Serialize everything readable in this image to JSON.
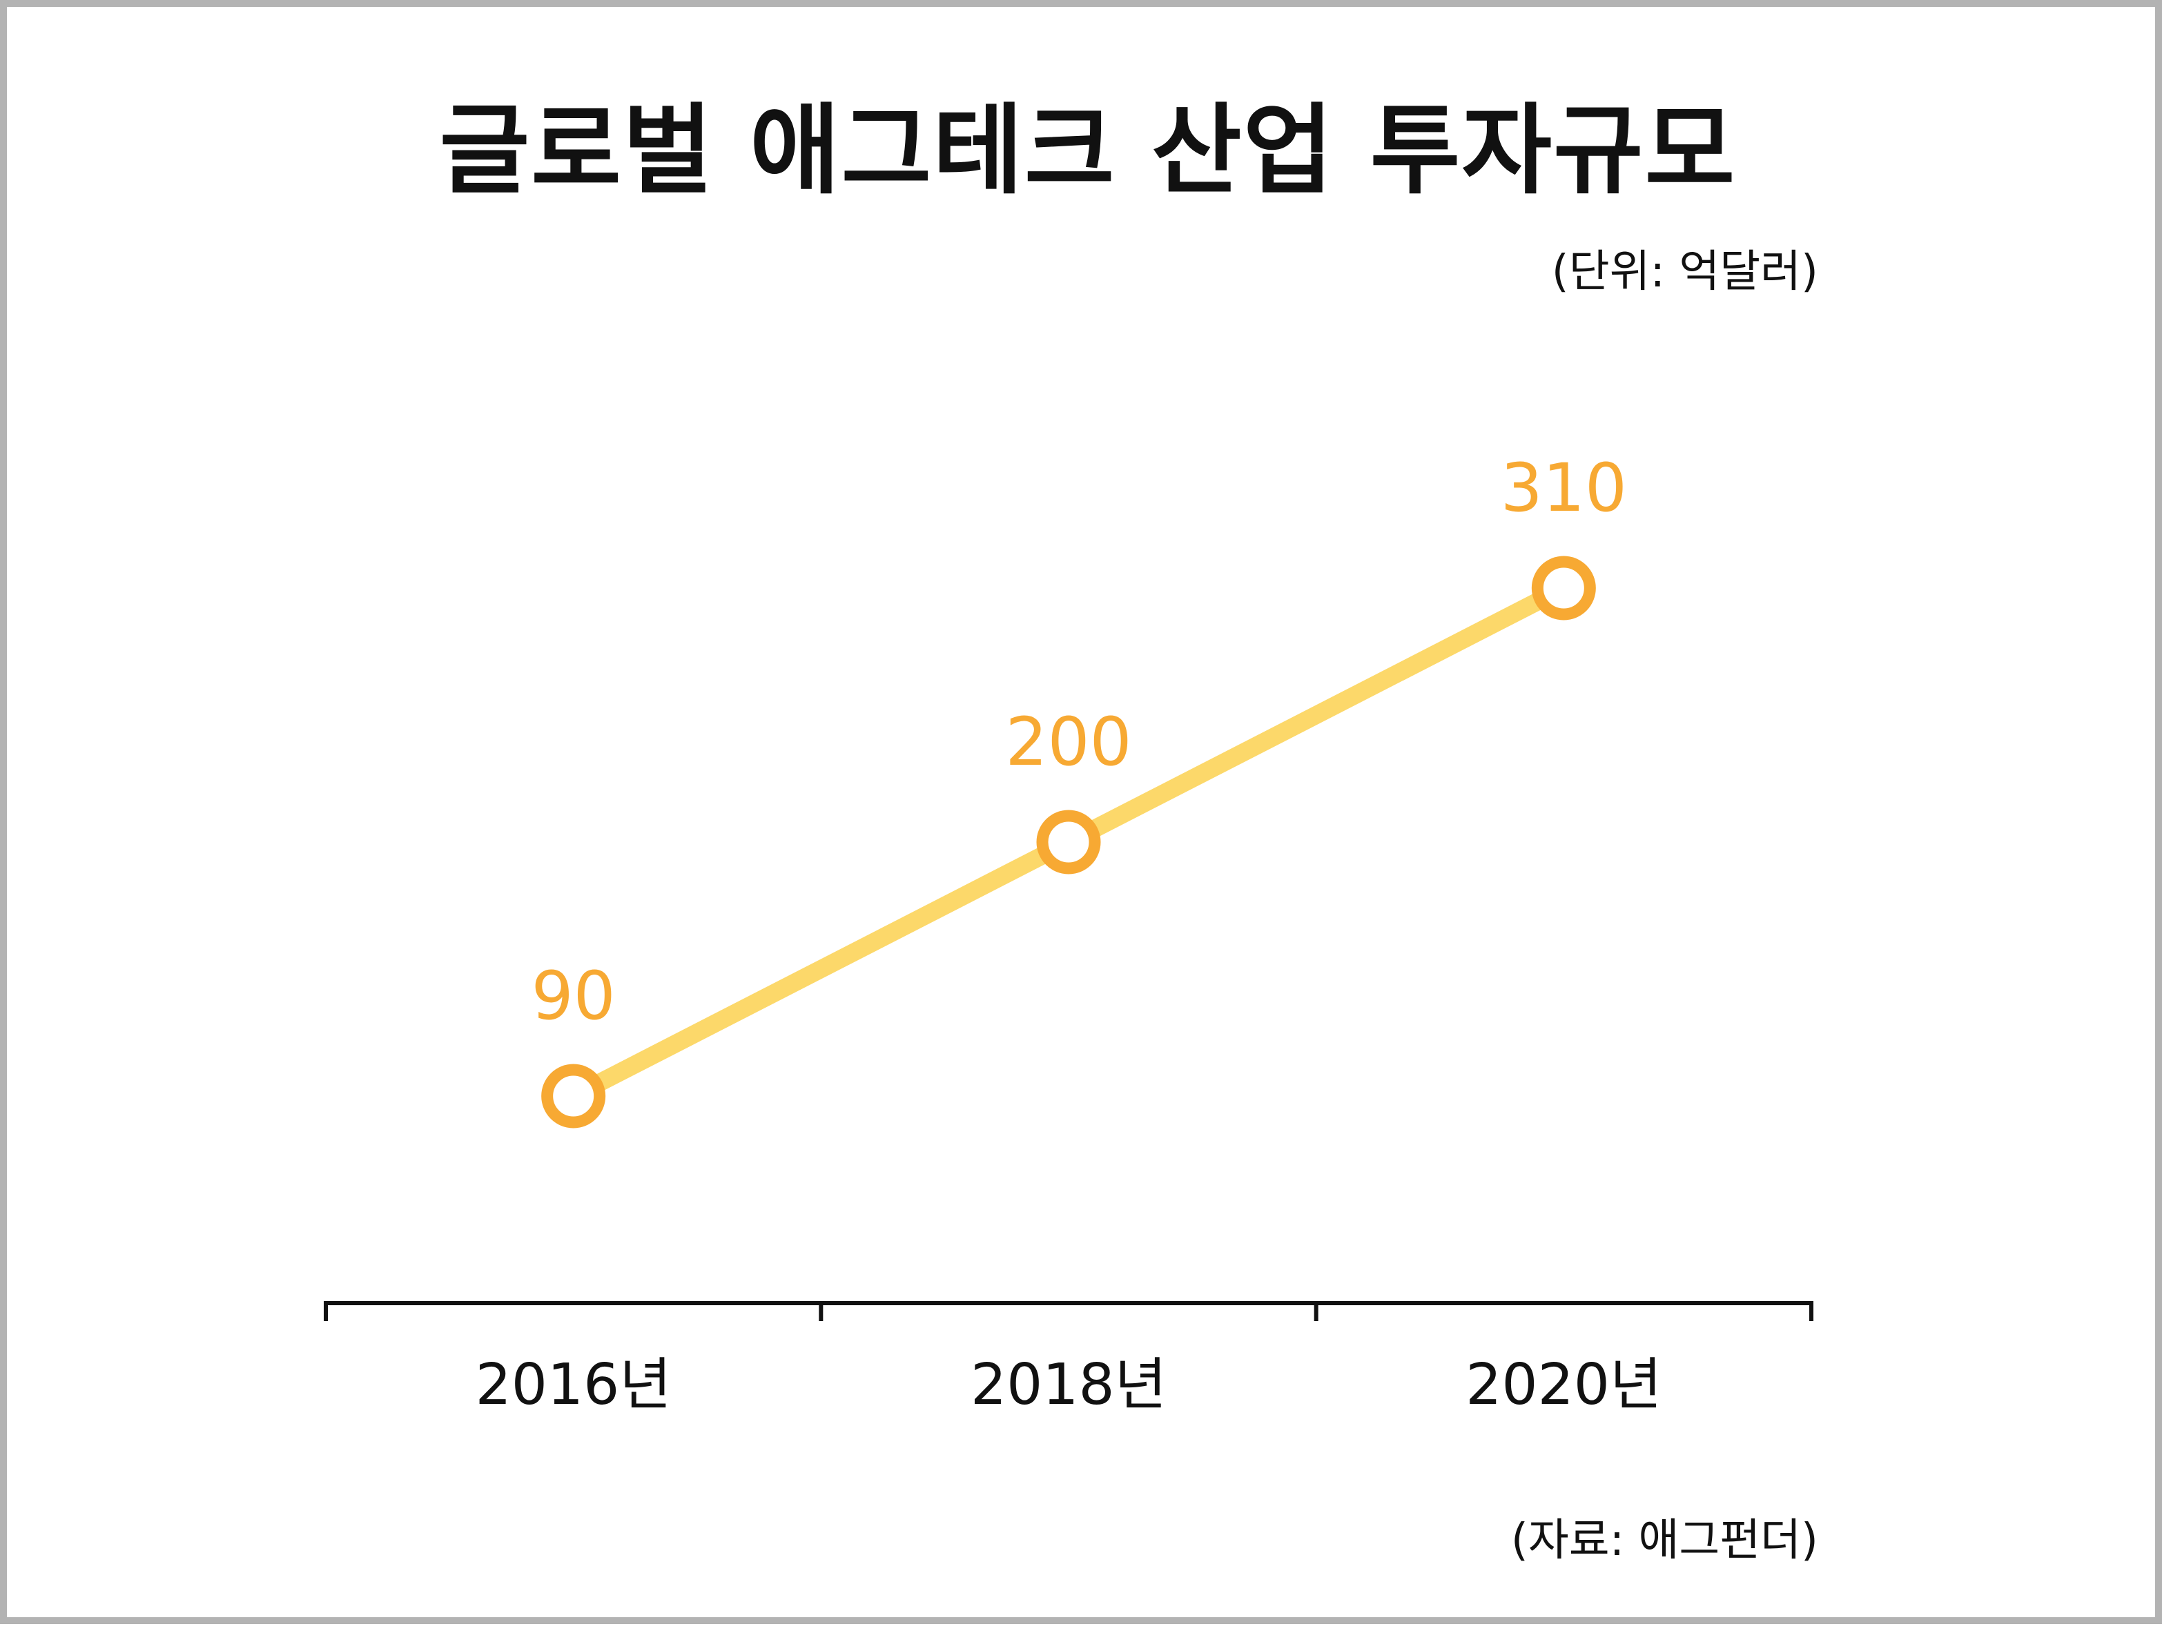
{
  "chart_data": {
    "type": "line",
    "title": "글로벌 애그테크 산업 투자규모",
    "unit": "(단위: 억달러)",
    "source": "(자료: 애그펀더)",
    "categories": [
      "2016년",
      "2018년",
      "2020년"
    ],
    "series": [
      {
        "values": [
          90,
          200,
          310
        ]
      }
    ],
    "data_labels": [
      "90",
      "200",
      "310"
    ],
    "grid": false,
    "legend": "none",
    "colors": {
      "line": "#fcd86a",
      "marker": "#f7a933",
      "label": "#f7a933",
      "axis": "#111111"
    }
  }
}
